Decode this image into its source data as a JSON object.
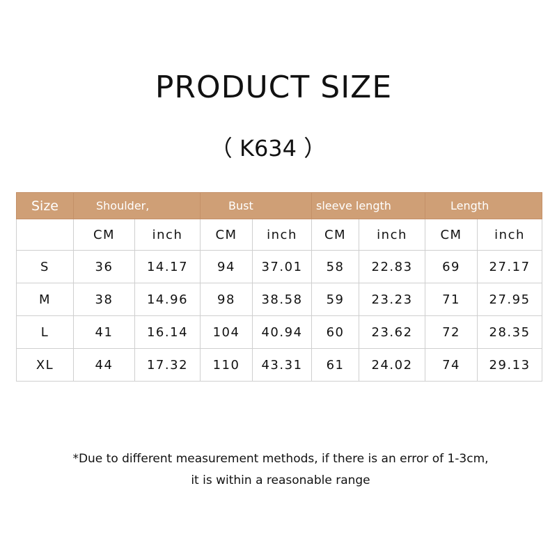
{
  "title": "PRODUCT SIZE",
  "code": "（ K634 ）",
  "header": {
    "color": "#cf9f76",
    "size": "Size",
    "groups": [
      "Shoulder,",
      "Bust",
      "sleeve length",
      "Length"
    ]
  },
  "units": [
    "CM",
    "inch",
    "CM",
    "inch",
    "CM",
    "inch",
    "CM",
    "inch"
  ],
  "rows": [
    {
      "size": "S",
      "values": [
        "36",
        "14.17",
        "94",
        "37.01",
        "58",
        "22.83",
        "69",
        "27.17"
      ]
    },
    {
      "size": "M",
      "values": [
        "38",
        "14.96",
        "98",
        "38.58",
        "59",
        "23.23",
        "71",
        "27.95"
      ]
    },
    {
      "size": "L",
      "values": [
        "41",
        "16.14",
        "104",
        "40.94",
        "60",
        "23.62",
        "72",
        "28.35"
      ]
    },
    {
      "size": "XL",
      "values": [
        "44",
        "17.32",
        "110",
        "43.31",
        "61",
        "24.02",
        "74",
        "29.13"
      ]
    }
  ],
  "note": {
    "line1": "*Due to different measurement methods, if there is an error of 1-3cm,",
    "line2": "it is within a reasonable range"
  }
}
